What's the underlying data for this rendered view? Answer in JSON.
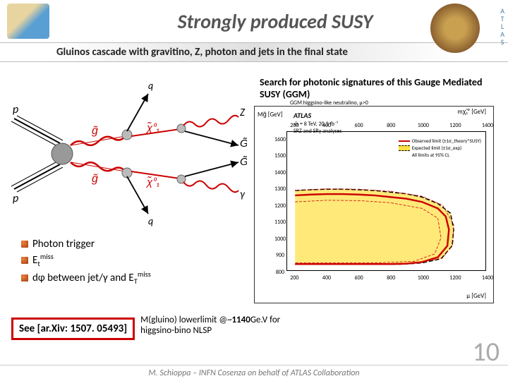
{
  "header": {
    "title": "Strongly produced SUSY",
    "atlas_letters": [
      "A",
      "T",
      "L",
      "A",
      "S"
    ]
  },
  "subtitle": "Gluinos cascade with gravitino, Z, photon and jets in the final state",
  "search_text": "Search for photonic signatures of this Gauge Mediated SUSY (GGM)",
  "feynman": {
    "p_left_top": "p",
    "p_left_bot": "p",
    "q_top": "q",
    "Z": "Z",
    "G_top": "G̃",
    "G_bot": "G̃",
    "gamma": "γ",
    "q_bot": "q",
    "gluino_top": "g̃",
    "gluino_bot": "g̃",
    "chi_top": "χ̃₁⁰",
    "chi_bot": "χ̃₁⁰",
    "colors": {
      "gluino": "#cc0000",
      "chi": "#cc0000",
      "boson_wave": "#cc0000",
      "fermion": "#000000"
    }
  },
  "chart": {
    "atlas_label": "ATLAS",
    "conditions": "√s = 8 TeV, 20.3 fb⁻¹",
    "analyses": "SRZ and SRγ analyses",
    "ylabel_top": "Mg̃ [GeV]",
    "xlabel": "μ [GeV]",
    "top_axis_label": "mχ̃₁⁰ [GeV]",
    "ggm_text": "GGM higgsino-like neutralino, μ>0",
    "x_ticks": [
      200,
      400,
      600,
      800,
      1000,
      1200,
      1400
    ],
    "y_ticks": [
      800,
      900,
      1000,
      1100,
      1200,
      1300,
      1400,
      1500,
      1600
    ],
    "top_ticks": [
      200,
      400,
      600,
      800,
      1000,
      1200,
      1400
    ],
    "xlim": [
      150,
      1400
    ],
    "ylim": [
      800,
      1650
    ],
    "legend": {
      "obs": "Observed limit (±1σ_theory^SUSY)",
      "exp": "Expected limit (±1σ_exp)",
      "cl": "All limits at 95% CL"
    },
    "colors": {
      "observed": "#cc0000",
      "expected": "#000000",
      "band": "#ffe040",
      "background": "#ffffff",
      "axis": "#000000"
    },
    "observed_path": [
      [
        200,
        1260
      ],
      [
        300,
        1265
      ],
      [
        400,
        1268
      ],
      [
        500,
        1268
      ],
      [
        600,
        1265
      ],
      [
        700,
        1260
      ],
      [
        800,
        1250
      ],
      [
        900,
        1240
      ],
      [
        1000,
        1220
      ],
      [
        1100,
        1180
      ],
      [
        1150,
        1130
      ],
      [
        1170,
        1050
      ],
      [
        1160,
        950
      ],
      [
        1100,
        880
      ],
      [
        1000,
        850
      ],
      [
        900,
        840
      ],
      [
        800,
        838
      ],
      [
        700,
        838
      ],
      [
        600,
        838
      ],
      [
        500,
        838
      ],
      [
        400,
        838
      ],
      [
        300,
        838
      ],
      [
        200,
        838
      ]
    ],
    "expected_path": [
      [
        200,
        1290
      ],
      [
        300,
        1295
      ],
      [
        400,
        1298
      ],
      [
        500,
        1298
      ],
      [
        600,
        1295
      ],
      [
        700,
        1290
      ],
      [
        800,
        1280
      ],
      [
        900,
        1270
      ],
      [
        1000,
        1250
      ],
      [
        1100,
        1210
      ],
      [
        1180,
        1150
      ],
      [
        1200,
        1050
      ],
      [
        1190,
        950
      ],
      [
        1120,
        870
      ],
      [
        1000,
        845
      ],
      [
        900,
        838
      ],
      [
        800,
        836
      ],
      [
        700,
        836
      ],
      [
        600,
        836
      ],
      [
        500,
        836
      ],
      [
        400,
        836
      ],
      [
        300,
        836
      ],
      [
        200,
        836
      ]
    ],
    "obs_inner": [
      [
        200,
        1220
      ],
      [
        400,
        1230
      ],
      [
        600,
        1228
      ],
      [
        800,
        1215
      ],
      [
        1000,
        1180
      ],
      [
        1100,
        1120
      ],
      [
        1120,
        1000
      ],
      [
        1080,
        900
      ],
      [
        950,
        855
      ],
      [
        700,
        845
      ],
      [
        400,
        845
      ],
      [
        200,
        845
      ]
    ],
    "obs_outer": [
      [
        200,
        1290
      ],
      [
        400,
        1300
      ],
      [
        600,
        1298
      ],
      [
        800,
        1285
      ],
      [
        1000,
        1255
      ],
      [
        1130,
        1200
      ],
      [
        1200,
        1080
      ],
      [
        1195,
        960
      ],
      [
        1130,
        875
      ],
      [
        950,
        842
      ],
      [
        700,
        835
      ],
      [
        400,
        835
      ],
      [
        200,
        835
      ]
    ]
  },
  "bullets": {
    "b1": "Photon trigger",
    "b2_pre": "E",
    "b2_sub": "t",
    "b2_sup": "miss",
    "b3_pre": "d",
    "b3_phi": "φ",
    "b3_mid": " between jet/γ and E",
    "b3_sub": "T",
    "b3_sup": "miss"
  },
  "reference": "See [ar.Xiv: 1507. 05493]",
  "result": {
    "line1_pre": "M(gluino) lowerlimit @~",
    "line1_val": "1140",
    "line1_post": "Ge.V for",
    "line2": "higgsino-bino NLSP"
  },
  "page_number": "10",
  "footer": "M. Schioppa – INFN Cosenza on behalf of ATLAS Collaboration"
}
